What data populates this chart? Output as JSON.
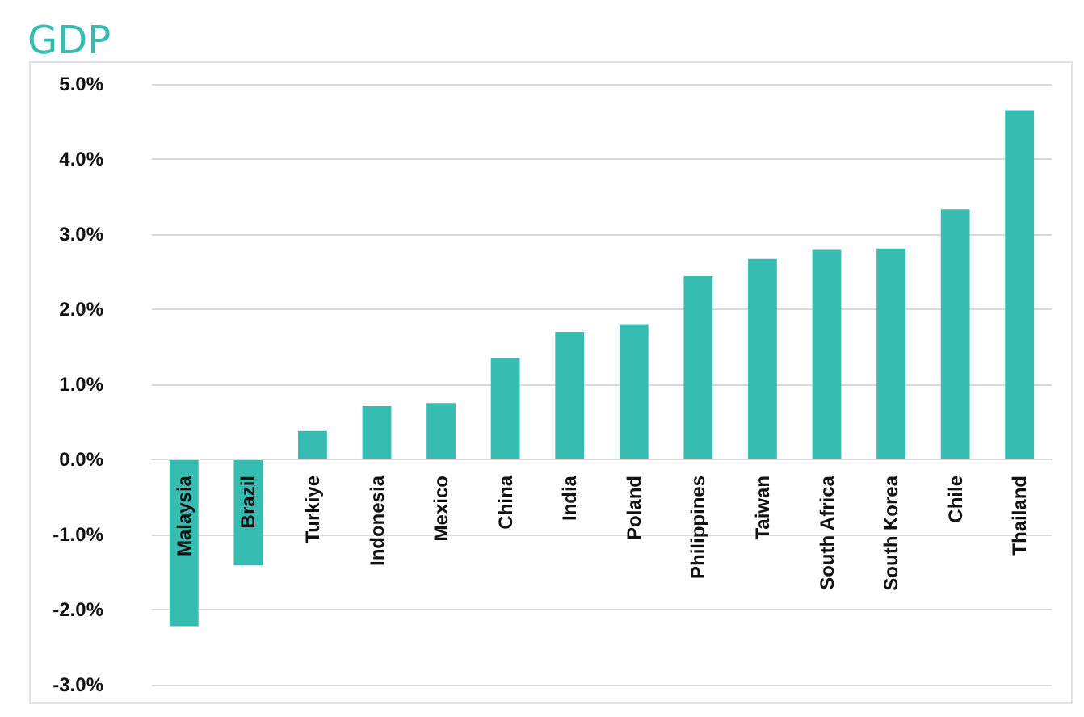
{
  "chart_data": {
    "type": "bar",
    "title": "GDP",
    "categories": [
      "Malaysia",
      "Brazil",
      "Turkiye",
      "Indonesia",
      "Mexico",
      "China",
      "India",
      "Poland",
      "Philippines",
      "Taiwan",
      "South Africa",
      "South Korea",
      "Chile",
      "Thailand"
    ],
    "values": [
      -2.22,
      -1.41,
      0.38,
      0.71,
      0.75,
      1.35,
      1.7,
      1.8,
      2.44,
      2.67,
      2.79,
      2.81,
      3.33,
      4.65
    ],
    "color": "#36bcb0",
    "ylim": [
      -3,
      5
    ],
    "yticks": [
      {
        "value": -3,
        "label": "-3.0%"
      },
      {
        "value": -2,
        "label": "-2.0%"
      },
      {
        "value": -1,
        "label": "-1.0%"
      },
      {
        "value": 0,
        "label": "0.0%"
      },
      {
        "value": 1,
        "label": "1.0%"
      },
      {
        "value": 2,
        "label": "2.0%"
      },
      {
        "value": 3,
        "label": "3.0%"
      },
      {
        "value": 4,
        "label": "4.0%"
      },
      {
        "value": 5,
        "label": "5.0%"
      }
    ],
    "grid": "y"
  }
}
